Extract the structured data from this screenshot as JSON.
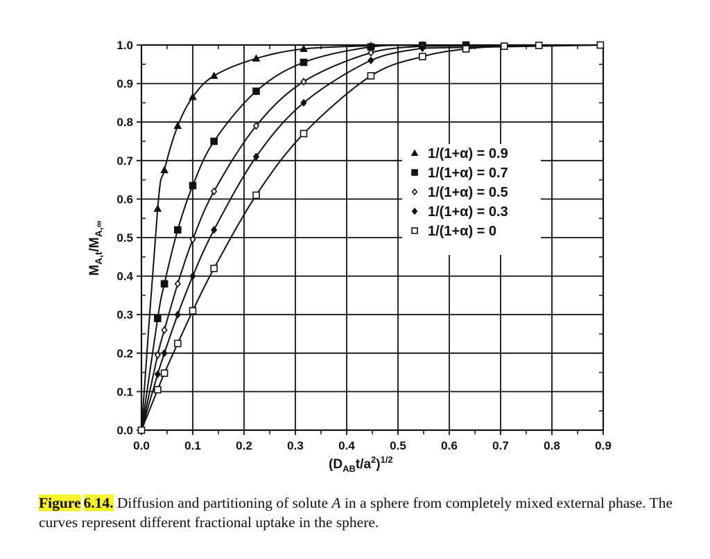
{
  "figure": {
    "label": "Figure",
    "number": "6.14.",
    "caption_part1": " Diffusion and partitioning of solute ",
    "caption_symbol": "A",
    "caption_part2": " in a sphere from completely mixed external phase. The curves represent different fractional uptake in the sphere.",
    "highlight_color": "#f7f32b"
  },
  "chart_data": {
    "type": "line",
    "title": "",
    "xlabel": "(D_AB t/a^2)^1/2",
    "ylabel": "M_A,t/M_A,∞",
    "xlim": [
      0.0,
      0.9
    ],
    "ylim": [
      0.0,
      1.0
    ],
    "xticks": [
      "0.0",
      "0.1",
      "0.2",
      "0.3",
      "0.4",
      "0.5",
      "0.6",
      "0.7",
      "0.8",
      "0.9"
    ],
    "yticks": [
      "0.0",
      "0.1",
      "0.2",
      "0.3",
      "0.4",
      "0.5",
      "0.6",
      "0.7",
      "0.8",
      "0.9",
      "1.0"
    ],
    "grid": true,
    "legend_position": "upper-right (inside, around x=0.5-0.8, y=0.5-0.7)",
    "series": [
      {
        "name": "1/(1+α) = 0.9",
        "marker": "filled-triangle",
        "x": [
          0.0,
          0.0316,
          0.0447,
          0.0707,
          0.1,
          0.1414,
          0.2236,
          0.3162,
          0.4472,
          0.5477
        ],
        "y": [
          0.0,
          0.575,
          0.675,
          0.79,
          0.865,
          0.92,
          0.965,
          0.99,
          0.998,
          1.0
        ]
      },
      {
        "name": "1/(1+α) = 0.7",
        "marker": "filled-square",
        "x": [
          0.0,
          0.0316,
          0.0447,
          0.0707,
          0.1,
          0.1414,
          0.2236,
          0.3162,
          0.4472,
          0.5477,
          0.6325
        ],
        "y": [
          0.0,
          0.29,
          0.38,
          0.52,
          0.635,
          0.75,
          0.88,
          0.955,
          0.995,
          0.999,
          1.0
        ]
      },
      {
        "name": "1/(1+α) = 0.5",
        "marker": "open-diamond",
        "x": [
          0.0,
          0.0316,
          0.0447,
          0.0707,
          0.1,
          0.1414,
          0.2236,
          0.3162,
          0.4472,
          0.5477
        ],
        "y": [
          0.0,
          0.195,
          0.26,
          0.38,
          0.495,
          0.62,
          0.79,
          0.905,
          0.98,
          0.997
        ]
      },
      {
        "name": "1/(1+α) = 0.3",
        "marker": "filled-diamond",
        "x": [
          0.0,
          0.0316,
          0.0447,
          0.0707,
          0.1,
          0.1414,
          0.2236,
          0.3162,
          0.4472,
          0.5477
        ],
        "y": [
          0.0,
          0.145,
          0.2,
          0.3,
          0.4,
          0.52,
          0.71,
          0.85,
          0.96,
          0.992
        ]
      },
      {
        "name": "1/(1+α) = 0",
        "marker": "open-square",
        "x": [
          0.0,
          0.0316,
          0.0447,
          0.0707,
          0.1,
          0.1414,
          0.2236,
          0.3162,
          0.4472,
          0.5477,
          0.6325,
          0.7071,
          0.7746,
          0.8944
        ],
        "y": [
          0.0,
          0.105,
          0.148,
          0.225,
          0.31,
          0.42,
          0.61,
          0.77,
          0.92,
          0.97,
          0.99,
          0.997,
          0.999,
          1.0
        ]
      }
    ]
  },
  "legend": {
    "items": [
      {
        "marker": "filled-triangle",
        "label": "1/(1+α) = 0.9"
      },
      {
        "marker": "filled-square",
        "label": "1/(1+α) = 0.7"
      },
      {
        "marker": "open-diamond",
        "label": "1/(1+α) = 0.5"
      },
      {
        "marker": "filled-diamond",
        "label": "1/(1+α) = 0.3"
      },
      {
        "marker": "open-square",
        "label": "1/(1+α) = 0"
      }
    ]
  },
  "axes": {
    "x_title_main": "(D",
    "x_title_sub": "AB",
    "x_title_mid": "t/a",
    "x_title_sup1": "2",
    "x_title_close": ")",
    "x_title_sup2": "1/2",
    "y_title_main1": "M",
    "y_title_sub1": "A,t",
    "y_title_slash": "/M",
    "y_title_sub2": "A,∞"
  }
}
